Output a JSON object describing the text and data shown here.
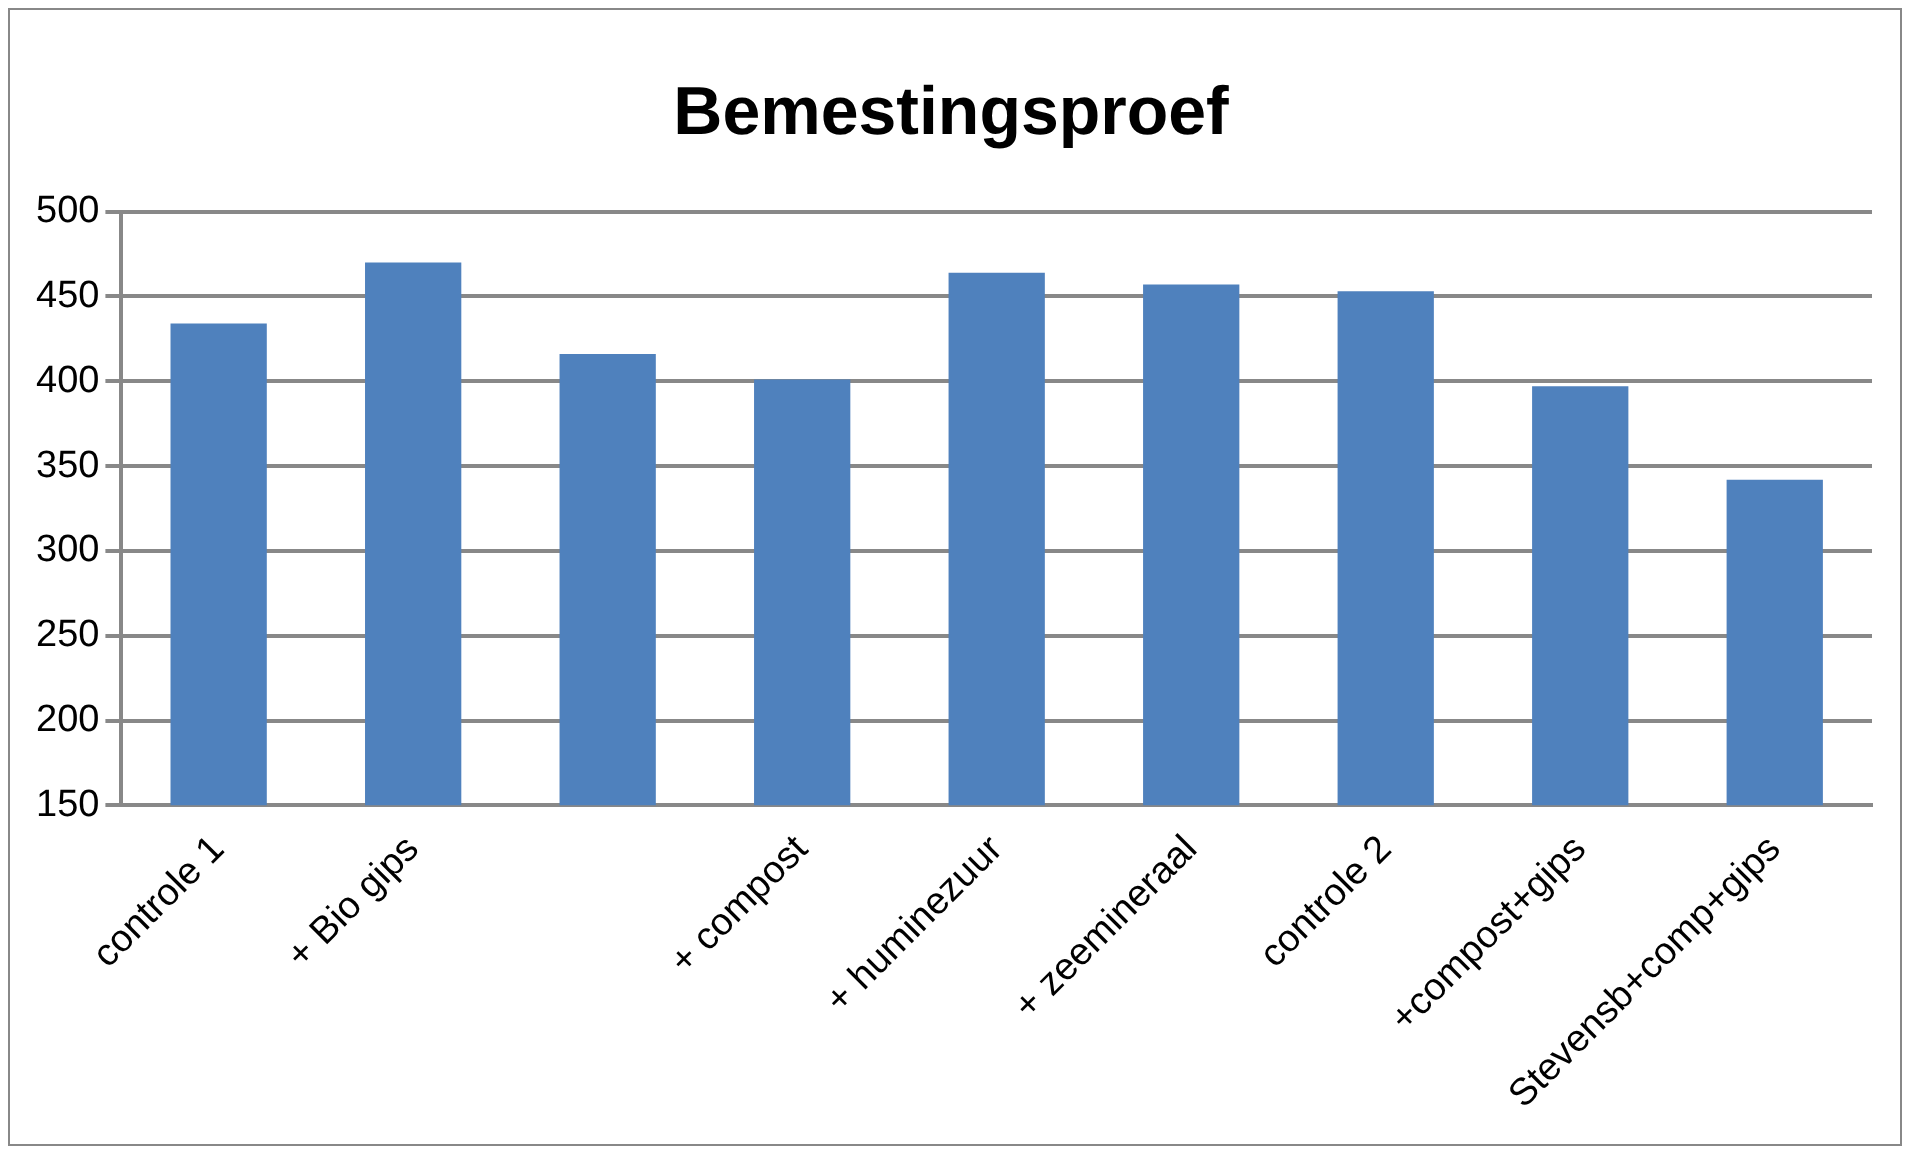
{
  "chart_data": {
    "type": "bar",
    "title": "Bemestingsproef",
    "categories": [
      "controle 1",
      "+ Bio gips",
      null,
      "+ compost",
      "+ huminezuur",
      "+ zeemineraal",
      "controle 2",
      "+compost+gips",
      "Stevensb+comp+gips"
    ],
    "values": [
      434,
      470,
      416,
      401,
      464,
      457,
      453,
      397,
      342
    ],
    "color": "#4f81bd",
    "ylim": [
      150,
      500
    ],
    "yticks": [
      150,
      200,
      250,
      300,
      350,
      400,
      450,
      500
    ],
    "grid": "y",
    "legend": false
  }
}
